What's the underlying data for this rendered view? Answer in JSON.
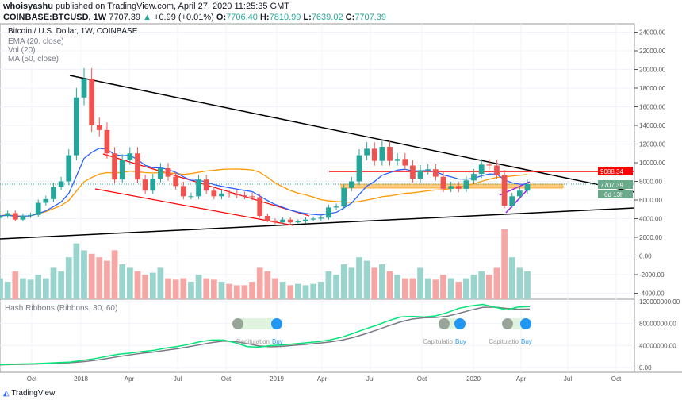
{
  "header": {
    "publisher": "whoisyashu",
    "published_text": "published on TradingView.com, April 27, 2020 11:25:35 GMT",
    "symbol": "COINBASE:BTCUSD, 1W",
    "last": "7707.39",
    "change": "+0.99 (+0.01%)",
    "o": "7706.40",
    "h": "7810.99",
    "l": "7639.02",
    "c": "7707.39"
  },
  "legend": {
    "title": "Bitcoin / U.S. Dollar, 1W, COINBASE",
    "ema": "EMA (20, close)",
    "vol": "Vol (20)",
    "ma": "MA (50, close)",
    "hash": "Hash Ribbons (Ribbons, 30, 60)"
  },
  "price_labels": {
    "red_level": "9088.34",
    "last": "7707.39",
    "countdown": "6d 13h"
  },
  "signals": [
    {
      "capitulation": "Capitulation",
      "buy": "Buy"
    },
    {
      "capitulation": "Capitulatio",
      "buy": "Buy"
    },
    {
      "capitulation": "Capitulatio",
      "buy": "Buy"
    }
  ],
  "brand": "TradingView",
  "colors": {
    "up": "#26a69a",
    "down": "#ef5350",
    "ema": "#2962ff",
    "ma": "#ff9800",
    "hash_fast": "#00e676",
    "hash_slow": "#787b86"
  },
  "chart_data": {
    "type": "candlestick",
    "price_axis": {
      "ticks": [
        "24000.00",
        "22000.00",
        "20000.00",
        "18000.00",
        "16000.00",
        "14000.00",
        "12000.00",
        "10000.00",
        "8000.00",
        "6000.00",
        "4000.00",
        "2000.00",
        "0.00",
        "-2000.00",
        "-4000.00"
      ],
      "range": [
        -4500,
        25000
      ]
    },
    "time_axis": {
      "ticks": [
        "Oct",
        "2018",
        "Apr",
        "Jul",
        "Oct",
        "2019",
        "Apr",
        "Jul",
        "Oct",
        "2020",
        "Apr",
        "Jul",
        "Oct"
      ]
    },
    "hash_axis": {
      "ticks": [
        "120000000.00",
        "80000000.00",
        "40000000.00",
        "0.00"
      ]
    },
    "closes": [
      4300,
      4600,
      3900,
      4300,
      4400,
      5700,
      6100,
      7400,
      8000,
      10800,
      17000,
      19000,
      14000,
      13500,
      11000,
      8200,
      10300,
      11000,
      8200,
      7000,
      8300,
      9400,
      8500,
      7500,
      6400,
      6400,
      8200,
      7000,
      6400,
      6700,
      6600,
      6500,
      6400,
      6300,
      4300,
      3800,
      3600,
      3900,
      3600,
      3700,
      3900,
      4000,
      4100,
      5200,
      5300,
      7300,
      8000,
      10800,
      11500,
      10200,
      11700,
      10200,
      10400,
      9700,
      8300,
      9200,
      9300,
      8500,
      7200,
      7500,
      7200,
      8100,
      8800,
      9800,
      9700,
      8700,
      5400,
      6400,
      7000,
      7707
    ],
    "volume": [
      30,
      25,
      40,
      30,
      28,
      35,
      30,
      45,
      40,
      60,
      80,
      70,
      65,
      60,
      55,
      70,
      50,
      45,
      40,
      35,
      38,
      45,
      30,
      28,
      30,
      25,
      35,
      30,
      28,
      25,
      22,
      20,
      20,
      25,
      45,
      40,
      30,
      25,
      20,
      22,
      20,
      22,
      25,
      40,
      35,
      50,
      45,
      60,
      55,
      45,
      50,
      40,
      35,
      30,
      30,
      45,
      30,
      28,
      35,
      30,
      25,
      30,
      35,
      40,
      35,
      45,
      100,
      60,
      45,
      40
    ],
    "hashrate": [
      5,
      6,
      6.5,
      7,
      8,
      9,
      10,
      13,
      16,
      20,
      24,
      26,
      29,
      31,
      35,
      38,
      42,
      47,
      50,
      50,
      45,
      38,
      37,
      40,
      41,
      43,
      45,
      47,
      50,
      55,
      62,
      70,
      77,
      85,
      92,
      93,
      92,
      94,
      100,
      108,
      112,
      115,
      110,
      105,
      110,
      111
    ],
    "levels": {
      "resistance": 9088.34
    }
  }
}
